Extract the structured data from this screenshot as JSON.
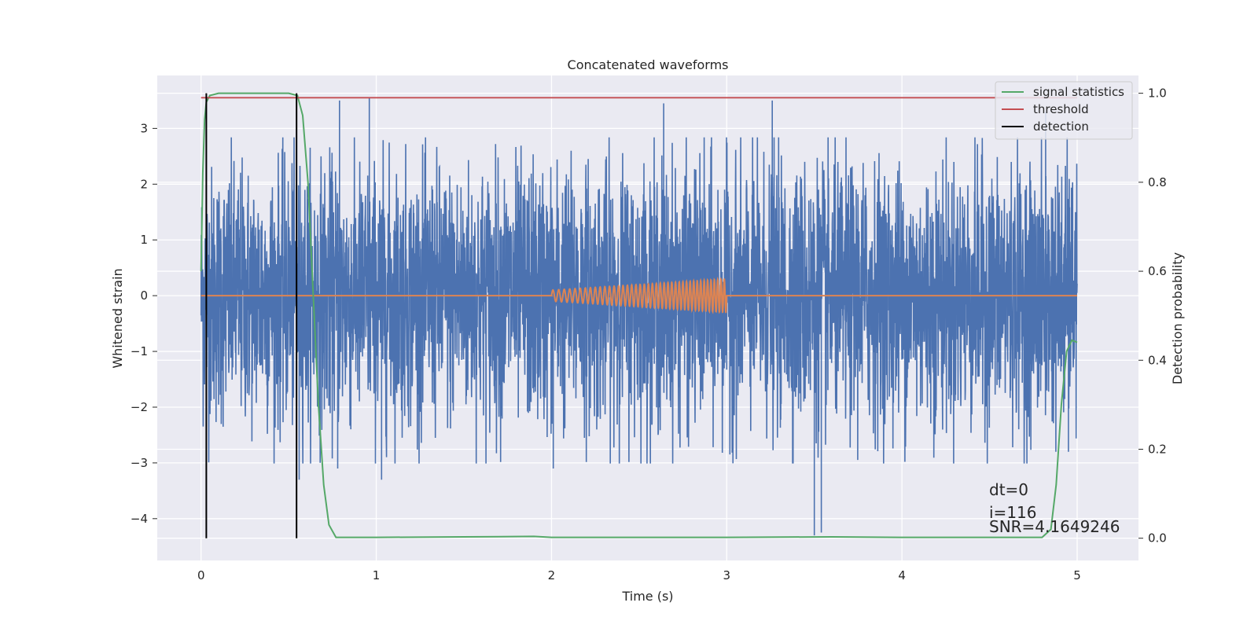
{
  "chart_data": {
    "type": "line",
    "title": "Concatenated waveforms",
    "xlabel": "Time (s)",
    "ylabel_left": "Whitened strain",
    "ylabel_right": "Detection probability",
    "xlim": [
      -0.25,
      5.35
    ],
    "ylim_left": [
      -4.75,
      3.95
    ],
    "ylim_right": [
      -0.05,
      1.04
    ],
    "x_ticks": [
      0,
      1,
      2,
      3,
      4,
      5
    ],
    "y_left_ticks": [
      -4,
      -3,
      -2,
      -1,
      0,
      1,
      2,
      3
    ],
    "y_right_ticks": [
      0.0,
      0.2,
      0.4,
      0.6,
      0.8,
      1.0
    ],
    "grid": true,
    "legend_position": "upper right",
    "colors": {
      "background": "#eaeaf2",
      "grid": "#ffffff",
      "whitened_strain": "#4c72b0",
      "injected_signal": "#dd8452",
      "signal_statistics": "#55a868",
      "threshold": "#c44e52",
      "detection": "#000000"
    },
    "series": [
      {
        "key": "whitened_strain",
        "axis": "left",
        "kind": "noise",
        "x_range": [
          0,
          5
        ],
        "typical_amplitude": 1.2,
        "peak_range": [
          -4.3,
          3.55
        ],
        "approx_spikes": [
          {
            "x": 0.79,
            "y": 3.5
          },
          {
            "x": 0.96,
            "y": 3.55
          },
          {
            "x": 3.26,
            "y": 3.5
          },
          {
            "x": 2.64,
            "y": 3.45
          },
          {
            "x": 0.78,
            "y": -3.1
          },
          {
            "x": 1.03,
            "y": -3.3
          },
          {
            "x": 3.5,
            "y": -4.3
          },
          {
            "x": 3.54,
            "y": -4.25
          },
          {
            "x": 0.56,
            "y": -3.3
          },
          {
            "x": 2.01,
            "y": -3.1
          },
          {
            "x": 4.82,
            "y": 3.3
          },
          {
            "x": 4.95,
            "y": -2.8
          }
        ]
      },
      {
        "key": "injected_signal",
        "axis": "left",
        "kind": "chirp",
        "x_range": [
          2.0,
          3.0
        ],
        "amplitude_range": [
          0.1,
          0.3
        ],
        "baseline": 0.0
      },
      {
        "key": "signal_statistics",
        "name": "signal statistics",
        "axis": "right",
        "points": [
          [
            0.0,
            0.6
          ],
          [
            0.01,
            0.82
          ],
          [
            0.02,
            0.94
          ],
          [
            0.03,
            0.98
          ],
          [
            0.05,
            0.995
          ],
          [
            0.1,
            1.0
          ],
          [
            0.5,
            1.0
          ],
          [
            0.55,
            0.995
          ],
          [
            0.58,
            0.95
          ],
          [
            0.61,
            0.8
          ],
          [
            0.64,
            0.55
          ],
          [
            0.67,
            0.3
          ],
          [
            0.7,
            0.12
          ],
          [
            0.73,
            0.03
          ],
          [
            0.77,
            0.002
          ],
          [
            1.0,
            0.002
          ],
          [
            1.5,
            0.003
          ],
          [
            1.9,
            0.004
          ],
          [
            2.0,
            0.002
          ],
          [
            3.0,
            0.002
          ],
          [
            3.6,
            0.003
          ],
          [
            4.0,
            0.002
          ],
          [
            4.8,
            0.002
          ],
          [
            4.85,
            0.02
          ],
          [
            4.88,
            0.12
          ],
          [
            4.91,
            0.3
          ],
          [
            4.94,
            0.42
          ],
          [
            4.97,
            0.445
          ],
          [
            5.0,
            0.44
          ]
        ]
      },
      {
        "key": "threshold",
        "name": "threshold",
        "axis": "right",
        "points": [
          [
            0.0,
            0.99
          ],
          [
            5.0,
            0.99
          ]
        ]
      },
      {
        "key": "detection",
        "name": "detection",
        "axis": "right",
        "vlines": [
          0.03,
          0.545
        ],
        "range": [
          0.0,
          1.0
        ]
      }
    ],
    "legend": [
      "signal statistics",
      "threshold",
      "detection"
    ],
    "annotations": {
      "dt": "dt=0",
      "i": "i=116",
      "snr": "SNR=4.1649246"
    }
  }
}
